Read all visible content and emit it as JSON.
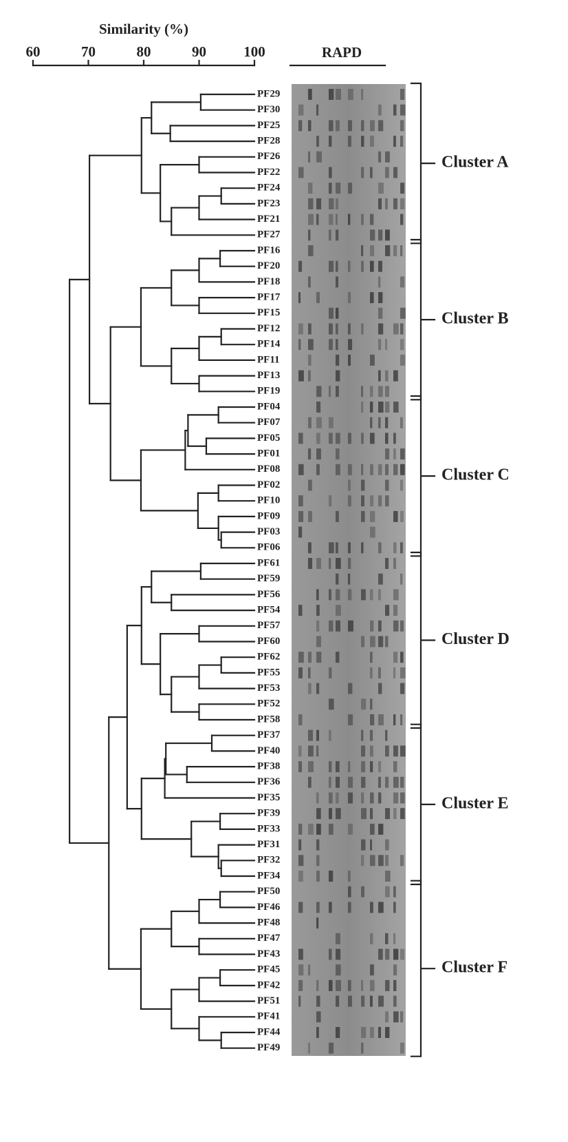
{
  "axis": {
    "title": "Similarity (%)",
    "xlim": [
      60,
      100
    ],
    "xticks": [
      60,
      70,
      80,
      90,
      100
    ]
  },
  "gel_title": "RAPD",
  "clusters": [
    "Cluster A",
    "Cluster B",
    "Cluster C",
    "Cluster D",
    "Cluster E",
    "Cluster F"
  ],
  "tree": {
    "similarity": 66.6,
    "children": [
      {
        "similarity": 70.2,
        "children": [
          {
            "similarity": 79.6,
            "children": [
              {
                "similarity": 81.4,
                "children": [
                  {
                    "similarity": 90.3,
                    "children": [
                      "PF29",
                      "PF30"
                    ]
                  },
                  {
                    "similarity": 84.8,
                    "children": [
                      "PF25",
                      "PF28"
                    ]
                  }
                ]
              },
              {
                "similarity": 83,
                "children": [
                  {
                    "similarity": 90,
                    "children": [
                      "PF26",
                      "PF22"
                    ]
                  },
                  {
                    "similarity": 85,
                    "children": [
                      {
                        "similarity": 90,
                        "children": [
                          {
                            "similarity": 94,
                            "children": [
                              "PF24",
                              "PF23"
                            ]
                          },
                          "PF21"
                        ]
                      },
                      "PF27"
                    ]
                  }
                ]
              }
            ]
          },
          {
            "similarity": 74,
            "children": [
              {
                "similarity": 79.5,
                "children": [
                  {
                    "similarity": 85,
                    "children": [
                      {
                        "similarity": 90,
                        "children": [
                          {
                            "similarity": 93.8,
                            "children": [
                              "PF16",
                              "PF20"
                            ]
                          },
                          "PF18"
                        ]
                      },
                      {
                        "similarity": 90,
                        "children": [
                          "PF17",
                          "PF15"
                        ]
                      }
                    ]
                  },
                  {
                    "similarity": 85,
                    "children": [
                      {
                        "similarity": 90,
                        "children": [
                          {
                            "similarity": 94,
                            "children": [
                              "PF12",
                              "PF14"
                            ]
                          },
                          "PF11"
                        ]
                      },
                      {
                        "similarity": 90,
                        "children": [
                          "PF13",
                          "PF19"
                        ]
                      }
                    ]
                  }
                ]
              },
              {
                "similarity": 79.5,
                "children": [
                  {
                    "similarity": 87.5,
                    "children": [
                      {
                        "similarity": 88,
                        "children": [
                          {
                            "similarity": 93.5,
                            "children": [
                              "PF04",
                              "PF07"
                            ]
                          },
                          {
                            "similarity": 91.3,
                            "children": [
                              "PF05",
                              "PF01"
                            ]
                          }
                        ]
                      },
                      "PF08"
                    ]
                  },
                  {
                    "similarity": 89.8,
                    "children": [
                      {
                        "similarity": 93.5,
                        "children": [
                          "PF02",
                          "PF10"
                        ]
                      },
                      {
                        "similarity": 93.5,
                        "children": [
                          "PF09",
                          {
                            "similarity": 94,
                            "children": [
                              "PF03",
                              "PF06"
                            ]
                          }
                        ]
                      }
                    ]
                  }
                ]
              }
            ]
          }
        ]
      },
      {
        "similarity": 73.7,
        "children": [
          {
            "similarity": 77,
            "children": [
              {
                "similarity": 79.6,
                "children": [
                  {
                    "similarity": 81.4,
                    "children": [
                      {
                        "similarity": 90.3,
                        "children": [
                          "PF61",
                          "PF59"
                        ]
                      },
                      {
                        "similarity": 85,
                        "children": [
                          "PF56",
                          "PF54"
                        ]
                      }
                    ]
                  },
                  {
                    "similarity": 83,
                    "children": [
                      {
                        "similarity": 90,
                        "children": [
                          "PF57",
                          "PF60"
                        ]
                      },
                      {
                        "similarity": 85,
                        "children": [
                          {
                            "similarity": 90,
                            "children": [
                              {
                                "similarity": 94,
                                "children": [
                                  "PF62",
                                  "PF55"
                                ]
                              },
                              "PF53"
                            ]
                          },
                          {
                            "similarity": 90,
                            "children": [
                              "PF52",
                              "PF58"
                            ]
                          }
                        ]
                      }
                    ]
                  }
                ]
              },
              {
                "similarity": 79.6,
                "children": [
                  {
                    "similarity": 83.8,
                    "children": [
                      {
                        "similarity": 84,
                        "children": [
                          {
                            "similarity": 92.3,
                            "children": [
                              "PF37",
                              "PF40"
                            ]
                          },
                          {
                            "similarity": 87.8,
                            "children": [
                              "PF38",
                              "PF36"
                            ]
                          }
                        ]
                      },
                      "PF35"
                    ]
                  },
                  {
                    "similarity": 88.6,
                    "children": [
                      {
                        "similarity": 93.8,
                        "children": [
                          "PF39",
                          "PF33"
                        ]
                      },
                      {
                        "similarity": 93.5,
                        "children": [
                          "PF31",
                          {
                            "similarity": 94,
                            "children": [
                              "PF32",
                              "PF34"
                            ]
                          }
                        ]
                      }
                    ]
                  }
                ]
              }
            ]
          },
          {
            "similarity": 79.5,
            "children": [
              {
                "similarity": 85,
                "children": [
                  {
                    "similarity": 90,
                    "children": [
                      {
                        "similarity": 93.8,
                        "children": [
                          "PF50",
                          "PF46"
                        ]
                      },
                      "PF48"
                    ]
                  },
                  {
                    "similarity": 90,
                    "children": [
                      "PF47",
                      "PF43"
                    ]
                  }
                ]
              },
              {
                "similarity": 85,
                "children": [
                  {
                    "similarity": 90,
                    "children": [
                      {
                        "similarity": 93.8,
                        "children": [
                          "PF45",
                          "PF42"
                        ]
                      },
                      "PF51"
                    ]
                  },
                  {
                    "similarity": 90,
                    "children": [
                      "PF41",
                      {
                        "similarity": 94,
                        "children": [
                          "PF44",
                          "PF49"
                        ]
                      }
                    ]
                  }
                ]
              }
            ]
          }
        ]
      }
    ]
  }
}
